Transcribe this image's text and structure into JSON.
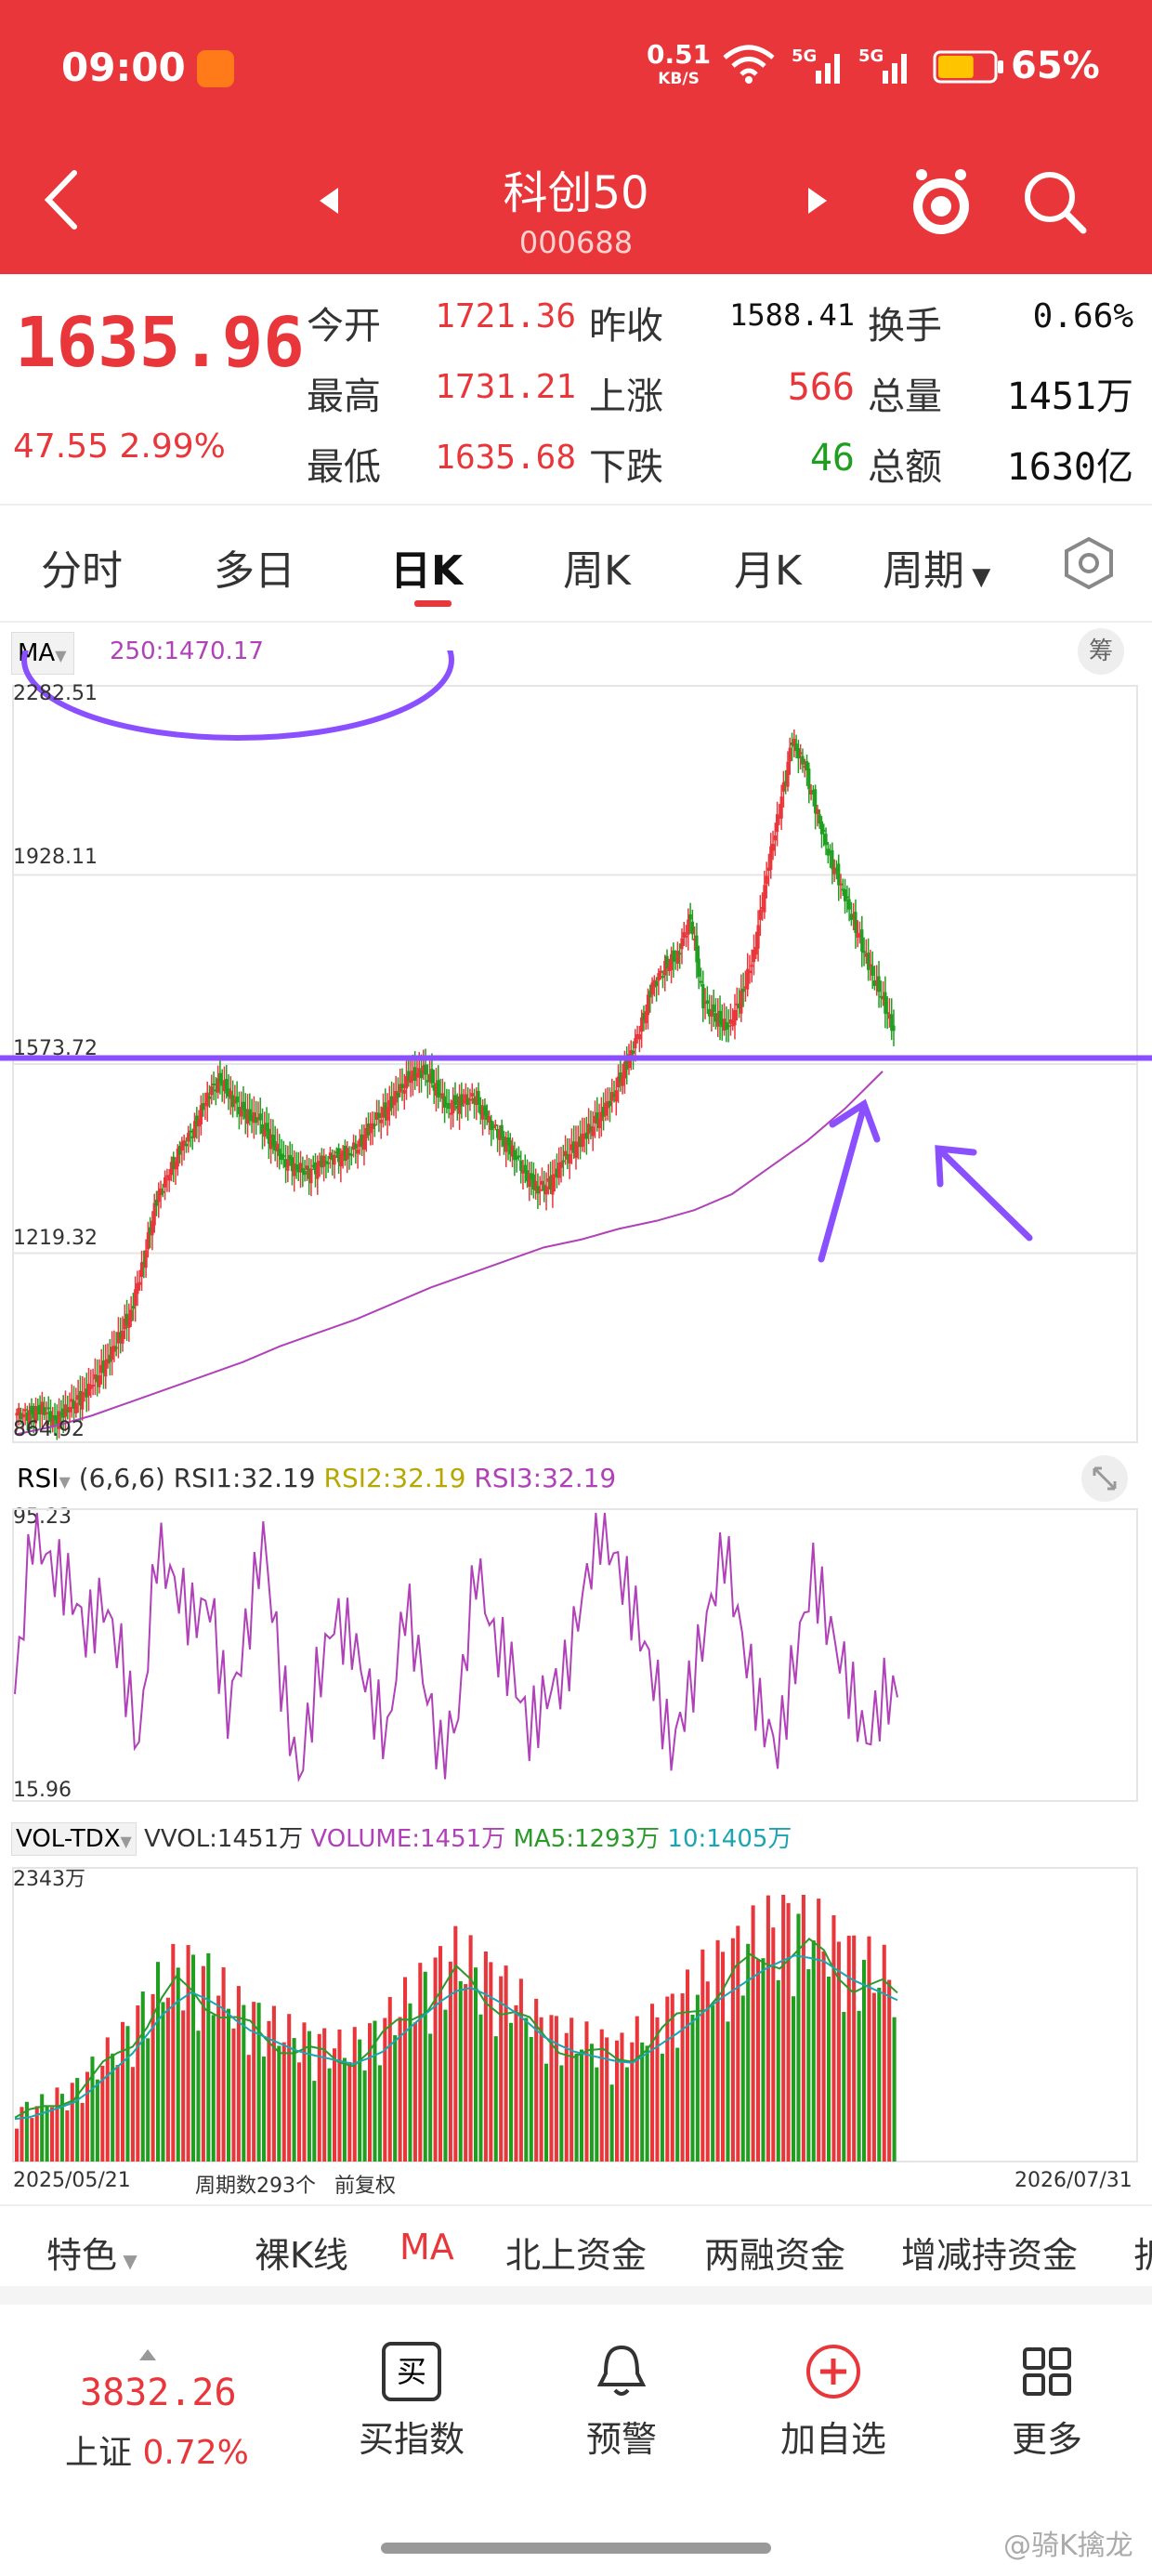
{
  "status": {
    "time": "09:00",
    "speed_value": "0.51",
    "speed_unit": "KB/S",
    "battery": "65%",
    "battery_level": 0.65
  },
  "header": {
    "title": "科创50",
    "code": "000688"
  },
  "quote": {
    "price": "1635.96",
    "change": "47.55 2.99%",
    "rows": [
      {
        "l1": "今开",
        "v1": "1721.36",
        "l2": "昨收",
        "v2": "1588.41",
        "l3": "换手",
        "v3": "0.66%"
      },
      {
        "l1": "最高",
        "v1": "1731.21",
        "l2": "上涨",
        "v2": "566",
        "l3": "总量",
        "v3": "1451万"
      },
      {
        "l1": "最低",
        "v1": "1635.68",
        "l2": "下跌",
        "v2": "46",
        "l3": "总额",
        "v3": "1630亿"
      }
    ]
  },
  "tabs": [
    "分时",
    "多日",
    "日K",
    "周K",
    "月K",
    "周期"
  ],
  "ma_legend": {
    "label": "MA",
    "value": "250:1470.17",
    "chip": "筹"
  },
  "price_axis": [
    "2282.51",
    "1928.11",
    "1573.72",
    "1219.32",
    "864.92"
  ],
  "rsi": {
    "label": "RSI",
    "params": "(6,6,6)",
    "rsi1": "RSI1:32.19",
    "rsi2": "RSI2:32.19",
    "rsi3": "RSI3:32.19",
    "max": "95.23",
    "min": "15.96"
  },
  "vol": {
    "label": "VOL-TDX",
    "vvol": "VVOL:1451万",
    "volume": "VOLUME:1451万",
    "ma5": "MA5:1293万",
    "ma10": "10:1405万",
    "max": "2343万"
  },
  "footer_axis": {
    "start": "2025/05/21",
    "periods": "周期数293个",
    "adjust": "前复权",
    "end": "2026/07/31"
  },
  "indicator_bar": [
    "特色",
    "裸K线",
    "MA",
    "北上资金",
    "两融资金",
    "增减持资金",
    "折"
  ],
  "bottom": {
    "index_value": "3832.26",
    "index_name": "上证",
    "index_change": "0.72%",
    "buttons": [
      "买指数",
      "预警",
      "加自选",
      "更多"
    ]
  },
  "watermark": "@骑K擒龙",
  "colors": {
    "header": "#e8363a",
    "up": "#e8363a",
    "down": "#1f9e1f",
    "annotation": "#8a4fff",
    "ma": "#b041b8"
  },
  "chart_data": {
    "type": "candlestick",
    "ylim": [
      864.92,
      2282.51
    ],
    "support_line": 1585,
    "close_path": [
      920,
      915,
      930,
      905,
      930,
      945,
      975,
      1010,
      1060,
      1110,
      1210,
      1320,
      1370,
      1420,
      1455,
      1515,
      1545,
      1505,
      1478,
      1468,
      1430,
      1395,
      1380,
      1370,
      1388,
      1400,
      1405,
      1425,
      1465,
      1485,
      1520,
      1550,
      1560,
      1528,
      1490,
      1505,
      1510,
      1470,
      1440,
      1410,
      1370,
      1340,
      1350,
      1395,
      1420,
      1450,
      1480,
      1520,
      1575,
      1635,
      1720,
      1755,
      1780,
      1850,
      1690,
      1660,
      1640,
      1700,
      1780,
      1930,
      2050,
      2180,
      2130,
      2040,
      1960,
      1900,
      1830,
      1760,
      1700,
      1636
    ],
    "ma250": [
      880,
      895,
      915,
      940,
      965,
      990,
      1015,
      1045,
      1070,
      1095,
      1125,
      1155,
      1180,
      1205,
      1230,
      1245,
      1265,
      1280,
      1300,
      1330,
      1380,
      1430,
      1490,
      1560
    ],
    "rsi": [
      45,
      90,
      80,
      75,
      62,
      70,
      55,
      30,
      85,
      75,
      66,
      70,
      40,
      60,
      88,
      50,
      22,
      48,
      65,
      60,
      45,
      33,
      70,
      50,
      28,
      40,
      80,
      60,
      52,
      35,
      45,
      50,
      72,
      90,
      80,
      66,
      50,
      30,
      45,
      65,
      85,
      60,
      40,
      30,
      55,
      78,
      62,
      48,
      32,
      45
    ],
    "volume_ma": [
      350,
      420,
      500,
      700,
      900,
      1200,
      1400,
      1300,
      1100,
      1000,
      900,
      850,
      800,
      900,
      1100,
      1300,
      1450,
      1350,
      1200,
      1000,
      900,
      850,
      800,
      950,
      1100,
      1300,
      1450,
      1600,
      1700,
      1650,
      1500,
      1400,
      1293
    ]
  }
}
